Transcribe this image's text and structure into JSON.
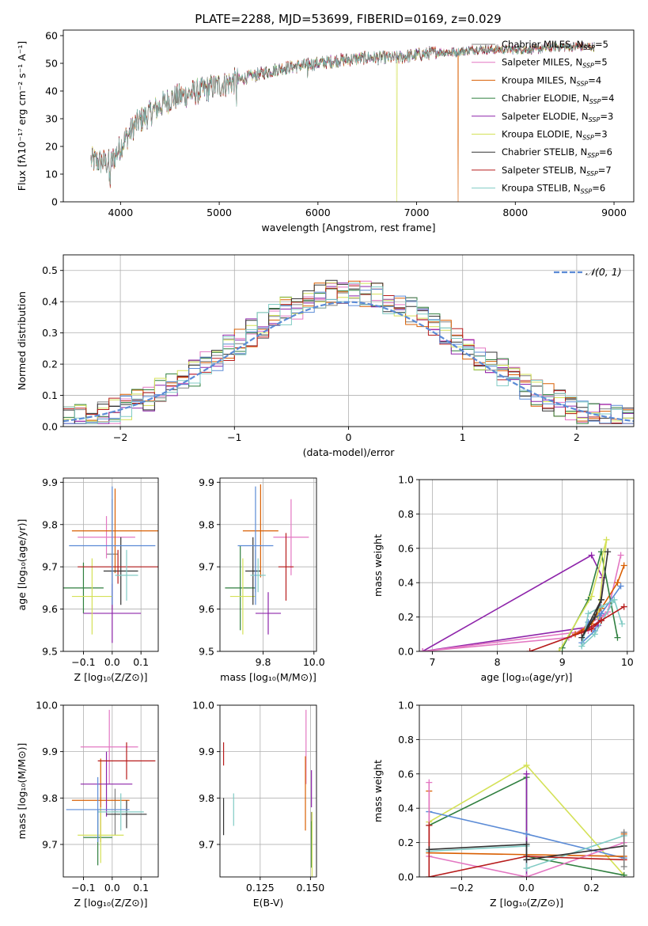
{
  "title": "PLATE=2288, MJD=53699, FIBERID=0169, z=0.029",
  "colors": {
    "Chabrier MILES": "#808080",
    "Salpeter MILES": "#e377c2",
    "Kroupa MILES": "#d95f02",
    "Chabrier ELODIE": "#2f7f3f",
    "Salpeter ELODIE": "#8e24aa",
    "Kroupa ELODIE": "#d4e157",
    "Chabrier STELIB": "#333333",
    "Salpeter STELIB": "#b71c1c",
    "Kroupa STELIB": "#80cbc4",
    "norm": "#5b8bd6",
    "grid": "#b0b0b0"
  },
  "chart_data": [
    {
      "id": "spectrum",
      "type": "line",
      "xlabel": "wavelength [Angstrom, rest frame]",
      "ylabel": "Flux [fλ10⁻¹⁷ erg cm⁻² s⁻¹ A⁻¹]",
      "xlim": [
        3420,
        9200
      ],
      "ylim": [
        0,
        62
      ],
      "xticks": [
        "4000",
        "5000",
        "6000",
        "7000",
        "8000",
        "9000"
      ],
      "yticks": [
        "0",
        "10",
        "20",
        "30",
        "40",
        "50",
        "60"
      ],
      "grid": false,
      "legend_position": "upper-right",
      "continuum": [
        [
          3700,
          15
        ],
        [
          3900,
          14
        ],
        [
          4000,
          20
        ],
        [
          4150,
          28
        ],
        [
          4300,
          32
        ],
        [
          4500,
          37
        ],
        [
          4800,
          40
        ],
        [
          5000,
          42
        ],
        [
          5200,
          44
        ],
        [
          5400,
          46
        ],
        [
          5600,
          48
        ],
        [
          5800,
          49
        ],
        [
          6000,
          50
        ],
        [
          6200,
          51
        ],
        [
          6500,
          52
        ],
        [
          6800,
          52
        ],
        [
          7000,
          53
        ],
        [
          7200,
          54
        ],
        [
          7400,
          54
        ],
        [
          7600,
          55
        ],
        [
          7800,
          55
        ],
        [
          8000,
          55
        ],
        [
          8200,
          55
        ],
        [
          8400,
          56
        ],
        [
          8600,
          56
        ],
        [
          8800,
          56
        ],
        [
          9000,
          56
        ]
      ],
      "series": [
        {
          "name": "Chabrier MILES, N",
          "sub": "SSP",
          "eq": "=5",
          "drop": null
        },
        {
          "name": "Salpeter MILES, N",
          "sub": "SSP",
          "eq": "=5",
          "drop": null
        },
        {
          "name": "Kroupa MILES, N",
          "sub": "SSP",
          "eq": "=4",
          "drop": 7420
        },
        {
          "name": "Chabrier ELODIE, N",
          "sub": "SSP",
          "eq": "=4",
          "drop": null
        },
        {
          "name": "Salpeter ELODIE, N",
          "sub": "SSP",
          "eq": "=3",
          "drop": null
        },
        {
          "name": "Kroupa ELODIE, N",
          "sub": "SSP",
          "eq": "=3",
          "drop": 6800
        },
        {
          "name": "Chabrier STELIB, N",
          "sub": "SSP",
          "eq": "=6",
          "drop": null
        },
        {
          "name": "Salpeter STELIB, N",
          "sub": "SSP",
          "eq": "=7",
          "drop": null
        },
        {
          "name": "Kroupa STELIB, N",
          "sub": "SSP",
          "eq": "=6",
          "drop": null
        }
      ]
    },
    {
      "id": "residuals",
      "type": "step",
      "xlabel": "(data-model)/error",
      "ylabel": "Normed distribution",
      "xlim": [
        -2.5,
        2.5
      ],
      "ylim": [
        0,
        0.55
      ],
      "xticks": [
        "−2",
        "−1",
        "0",
        "1",
        "2"
      ],
      "yticks": [
        "0.0",
        "0.1",
        "0.2",
        "0.3",
        "0.4",
        "0.5"
      ],
      "grid": true,
      "legend": "𝒩(0, 1)",
      "legend_position": "upper-right",
      "bin_width": 0.1
    },
    {
      "id": "age_vs_Z",
      "type": "errorbar",
      "xlabel": "Z [log₁₀(Z/Z⊙)]",
      "ylabel": "age  [log₁₀(age/yr)]",
      "xlim": [
        -0.17,
        0.16
      ],
      "ylim": [
        9.5,
        9.91
      ],
      "xticks": [
        "−0.1",
        "0.0",
        "0.1"
      ],
      "yticks": [
        "9.5",
        "9.6",
        "9.7",
        "9.8",
        "9.9"
      ],
      "grid": true,
      "points": [
        {
          "s": "Chabrier MILES",
          "x": 0.0,
          "y": 9.73,
          "ex": 0.02,
          "ey": 0.13
        },
        {
          "s": "Salpeter MILES",
          "x": -0.02,
          "y": 9.77,
          "ex": 0.1,
          "ey": 0.05
        },
        {
          "s": "Kroupa MILES",
          "x": 0.01,
          "y": 9.785,
          "ex": 0.15,
          "ey": 0.1
        },
        {
          "s": "Chabrier ELODIE",
          "x": -0.1,
          "y": 9.65,
          "ex": 0.07,
          "ey": 0.06
        },
        {
          "s": "Salpeter ELODIE",
          "x": 0.0,
          "y": 9.59,
          "ex": 0.1,
          "ey": 0.07
        },
        {
          "s": "Kroupa ELODIE",
          "x": -0.07,
          "y": 9.63,
          "ex": 0.07,
          "ey": 0.09
        },
        {
          "s": "Chabrier STELIB",
          "x": 0.03,
          "y": 9.69,
          "ex": 0.06,
          "ey": 0.08
        },
        {
          "s": "Salpeter STELIB",
          "x": 0.02,
          "y": 9.7,
          "ex": 0.14,
          "ey": 0.04
        },
        {
          "s": "Kroupa STELIB",
          "x": 0.05,
          "y": 9.68,
          "ex": 0.04,
          "ey": 0.06
        },
        {
          "s": "norm",
          "x": 0.0,
          "y": 9.75,
          "ex": 0.15,
          "ey": 0.14
        }
      ]
    },
    {
      "id": "age_vs_mass",
      "type": "errorbar",
      "xlabel": "mass [log₁₀(M/M⊙)]",
      "ylabel": "",
      "xlim": [
        9.63,
        10.01
      ],
      "ylim": [
        9.5,
        9.91
      ],
      "xticks": [
        "9.8",
        "10.0"
      ],
      "yticks": [
        "9.5",
        "9.6",
        "9.7",
        "9.8",
        "9.9"
      ],
      "grid": true,
      "points": [
        {
          "s": "Chabrier MILES",
          "x": 9.77,
          "y": 9.69,
          "ex": 0.01,
          "ey": 0.05
        },
        {
          "s": "Salpeter MILES",
          "x": 9.91,
          "y": 9.77,
          "ex": 0.07,
          "ey": 0.09
        },
        {
          "s": "Kroupa MILES",
          "x": 9.79,
          "y": 9.785,
          "ex": 0.07,
          "ey": 0.11
        },
        {
          "s": "Chabrier ELODIE",
          "x": 9.71,
          "y": 9.65,
          "ex": 0.06,
          "ey": 0.1
        },
        {
          "s": "Salpeter ELODIE",
          "x": 9.82,
          "y": 9.59,
          "ex": 0.05,
          "ey": 0.05
        },
        {
          "s": "Kroupa ELODIE",
          "x": 9.72,
          "y": 9.63,
          "ex": 0.05,
          "ey": 0.09
        },
        {
          "s": "Chabrier STELIB",
          "x": 9.76,
          "y": 9.69,
          "ex": 0.03,
          "ey": 0.08
        },
        {
          "s": "Salpeter STELIB",
          "x": 9.89,
          "y": 9.7,
          "ex": 0.03,
          "ey": 0.08
        },
        {
          "s": "Kroupa STELIB",
          "x": 9.78,
          "y": 9.68,
          "ex": 0.03,
          "ey": 0.04
        },
        {
          "s": "norm",
          "x": 9.77,
          "y": 9.75,
          "ex": 0.07,
          "ey": 0.14
        }
      ]
    },
    {
      "id": "weight_vs_age",
      "type": "line",
      "xlabel": "age  [log₁₀(age/yr)]",
      "ylabel": "mass weight",
      "xlim": [
        6.8,
        10.1
      ],
      "ylim": [
        0,
        1
      ],
      "xticks": [
        "7",
        "8",
        "9",
        "10"
      ],
      "yticks": [
        "0.0",
        "0.2",
        "0.4",
        "0.6",
        "0.8",
        "1.0"
      ],
      "grid": true,
      "series": [
        {
          "s": "Salpeter ELODIE",
          "points": [
            [
              9.62,
              0.43
            ],
            [
              9.45,
              0.56
            ],
            [
              6.85,
              0.0
            ],
            [
              9.55,
              0.15
            ],
            [
              9.62,
              0.43
            ]
          ]
        },
        {
          "s": "Salpeter MILES",
          "points": [
            [
              9.9,
              0.56
            ],
            [
              9.7,
              0.23
            ],
            [
              9.4,
              0.12
            ],
            [
              6.85,
              0.0
            ],
            [
              9.1,
              0.08
            ],
            [
              9.7,
              0.23
            ]
          ]
        },
        {
          "s": "Kroupa MILES",
          "points": [
            [
              9.95,
              0.5
            ],
            [
              9.85,
              0.4
            ],
            [
              9.6,
              0.25
            ],
            [
              9.35,
              0.13
            ],
            [
              9.2,
              0.1
            ],
            [
              9.45,
              0.16
            ],
            [
              9.6,
              0.25
            ]
          ]
        },
        {
          "s": "Chabrier ELODIE",
          "points": [
            [
              9.0,
              0.02
            ],
            [
              9.4,
              0.3
            ],
            [
              9.6,
              0.58
            ],
            [
              9.85,
              0.08
            ]
          ]
        },
        {
          "s": "Kroupa ELODIE",
          "points": [
            [
              8.95,
              0.0
            ],
            [
              9.45,
              0.32
            ],
            [
              9.68,
              0.65
            ],
            [
              9.55,
              0.2
            ]
          ]
        },
        {
          "s": "norm",
          "points": [
            [
              9.9,
              0.38
            ],
            [
              9.6,
              0.22
            ],
            [
              9.4,
              0.17
            ],
            [
              9.3,
              0.05
            ],
            [
              9.5,
              0.12
            ],
            [
              9.6,
              0.22
            ]
          ]
        },
        {
          "s": "Kroupa STELIB",
          "points": [
            [
              9.92,
              0.16
            ],
            [
              9.8,
              0.3
            ],
            [
              9.6,
              0.26
            ],
            [
              9.4,
              0.22
            ],
            [
              9.3,
              0.03
            ],
            [
              9.5,
              0.1
            ],
            [
              9.8,
              0.3
            ]
          ]
        },
        {
          "s": "Salpeter STELIB",
          "points": [
            [
              9.95,
              0.26
            ],
            [
              9.6,
              0.18
            ],
            [
              9.3,
              0.11
            ],
            [
              8.5,
              0.0
            ],
            [
              9.45,
              0.13
            ],
            [
              9.6,
              0.18
            ]
          ]
        },
        {
          "s": "Chabrier STELIB",
          "points": [
            [
              9.7,
              0.58
            ],
            [
              9.6,
              0.3
            ],
            [
              9.5,
              0.2
            ],
            [
              9.3,
              0.08
            ],
            [
              9.6,
              0.3
            ]
          ]
        }
      ]
    },
    {
      "id": "mass_vs_Z",
      "type": "errorbar",
      "xlabel": "Z [log₁₀(Z/Z⊙)]",
      "ylabel": "mass [log₁₀(M/M⊙)]",
      "xlim": [
        -0.17,
        0.16
      ],
      "ylim": [
        9.63,
        10.0
      ],
      "xticks": [
        "−0.1",
        "0.0",
        "0.1"
      ],
      "yticks": [
        "9.7",
        "9.8",
        "9.9",
        "10.0"
      ],
      "grid": true,
      "points": [
        {
          "s": "Chabrier MILES",
          "x": 0.01,
          "y": 9.77,
          "ex": 0.01,
          "ey": 0.05
        },
        {
          "s": "Salpeter MILES",
          "x": -0.01,
          "y": 9.91,
          "ex": 0.1,
          "ey": 0.08
        },
        {
          "s": "Kroupa MILES",
          "x": -0.04,
          "y": 9.795,
          "ex": 0.1,
          "ey": 0.09
        },
        {
          "s": "Chabrier ELODIE",
          "x": -0.05,
          "y": 9.715,
          "ex": 0.05,
          "ey": 0.06
        },
        {
          "s": "Salpeter ELODIE",
          "x": -0.02,
          "y": 9.83,
          "ex": 0.09,
          "ey": 0.07
        },
        {
          "s": "Kroupa ELODIE",
          "x": -0.04,
          "y": 9.72,
          "ex": 0.08,
          "ey": 0.06
        },
        {
          "s": "Chabrier STELIB",
          "x": 0.05,
          "y": 9.765,
          "ex": 0.07,
          "ey": 0.03
        },
        {
          "s": "Salpeter STELIB",
          "x": 0.05,
          "y": 9.88,
          "ex": 0.1,
          "ey": 0.04
        },
        {
          "s": "Kroupa STELIB",
          "x": 0.03,
          "y": 9.77,
          "ex": 0.08,
          "ey": 0.04
        },
        {
          "s": "norm",
          "x": -0.05,
          "y": 9.775,
          "ex": 0.11,
          "ey": 0.07
        }
      ]
    },
    {
      "id": "mass_vs_ebv",
      "type": "errorbar",
      "xlabel": "E(B-V)",
      "ylabel": "",
      "xlim": [
        0.105,
        0.153
      ],
      "ylim": [
        9.63,
        10.0
      ],
      "xticks": [
        "0.125",
        "0.150"
      ],
      "yticks": [
        "9.7",
        "9.8",
        "9.9",
        "10.0"
      ],
      "grid": true,
      "points": [
        {
          "s": "Chabrier MILES",
          "x": 0.1505,
          "y": 9.74,
          "ex": 0.0,
          "ey": 0.03
        },
        {
          "s": "Salpeter MILES",
          "x": 0.1478,
          "y": 9.91,
          "ex": 0.0,
          "ey": 0.08
        },
        {
          "s": "Kroupa MILES",
          "x": 0.1475,
          "y": 9.81,
          "ex": 0.0,
          "ey": 0.08
        },
        {
          "s": "Chabrier ELODIE",
          "x": 0.1505,
          "y": 9.7,
          "ex": 0.0,
          "ey": 0.05
        },
        {
          "s": "Salpeter ELODIE",
          "x": 0.1505,
          "y": 9.82,
          "ex": 0.0,
          "ey": 0.04
        },
        {
          "s": "Kroupa ELODIE",
          "x": 0.1508,
          "y": 9.7,
          "ex": 0.0,
          "ey": 0.07
        },
        {
          "s": "Chabrier STELIB",
          "x": 0.1068,
          "y": 9.76,
          "ex": 0.0,
          "ey": 0.04
        },
        {
          "s": "Salpeter STELIB",
          "x": 0.1068,
          "y": 9.895,
          "ex": 0.0,
          "ey": 0.025
        },
        {
          "s": "Kroupa STELIB",
          "x": 0.1118,
          "y": 9.775,
          "ex": 0.0,
          "ey": 0.035
        }
      ]
    },
    {
      "id": "weight_vs_Z",
      "type": "line",
      "xlabel": "Z [log₁₀(Z/Z⊙)]",
      "ylabel": "mass weight",
      "xlim": [
        -0.33,
        0.33
      ],
      "ylim": [
        0,
        1
      ],
      "xticks": [
        "−0.2",
        "0.0",
        "0.2"
      ],
      "yticks": [
        "0.0",
        "0.2",
        "0.4",
        "0.6",
        "0.8",
        "1.0"
      ],
      "grid": true,
      "series": [
        {
          "s": "Kroupa ELODIE",
          "points": [
            [
              -0.3,
              0.32
            ],
            [
              0.0,
              0.65
            ],
            [
              0.3,
              0.01
            ]
          ]
        },
        {
          "s": "Chabrier ELODIE",
          "points": [
            [
              -0.3,
              0.3
            ],
            [
              0.0,
              0.58
            ],
            [
              0.0,
              0.12
            ],
            [
              0.3,
              0.01
            ]
          ]
        },
        {
          "s": "Salpeter ELODIE",
          "points": [
            [
              0.0,
              0.0
            ],
            [
              0.0,
              0.6
            ]
          ]
        },
        {
          "s": "norm",
          "points": [
            [
              -0.3,
              0.38
            ],
            [
              0.0,
              0.25
            ],
            [
              0.3,
              0.11
            ]
          ]
        },
        {
          "s": "Kroupa MILES",
          "points": [
            [
              -0.3,
              0.5
            ],
            [
              -0.3,
              0.14
            ],
            [
              0.3,
              0.12
            ],
            [
              0.3,
              0.25
            ]
          ]
        },
        {
          "s": "Salpeter MILES",
          "points": [
            [
              -0.3,
              0.55
            ],
            [
              -0.3,
              0.12
            ],
            [
              0.0,
              0.0
            ],
            [
              0.3,
              0.2
            ]
          ]
        },
        {
          "s": "Kroupa STELIB",
          "points": [
            [
              -0.3,
              0.15
            ],
            [
              0.0,
              0.18
            ],
            [
              0.0,
              0.05
            ],
            [
              0.3,
              0.24
            ]
          ]
        },
        {
          "s": "Salpeter STELIB",
          "points": [
            [
              -0.3,
              0.3
            ],
            [
              -0.3,
              0.0
            ],
            [
              0.0,
              0.12
            ],
            [
              0.3,
              0.1
            ]
          ]
        },
        {
          "s": "Chabrier STELIB",
          "points": [
            [
              -0.3,
              0.16
            ],
            [
              0.0,
              0.19
            ],
            [
              0.0,
              0.1
            ],
            [
              0.3,
              0.18
            ]
          ]
        },
        {
          "s": "Chabrier MILES",
          "points": [
            [
              0.3,
              0.06
            ],
            [
              0.3,
              0.26
            ]
          ]
        }
      ]
    }
  ]
}
